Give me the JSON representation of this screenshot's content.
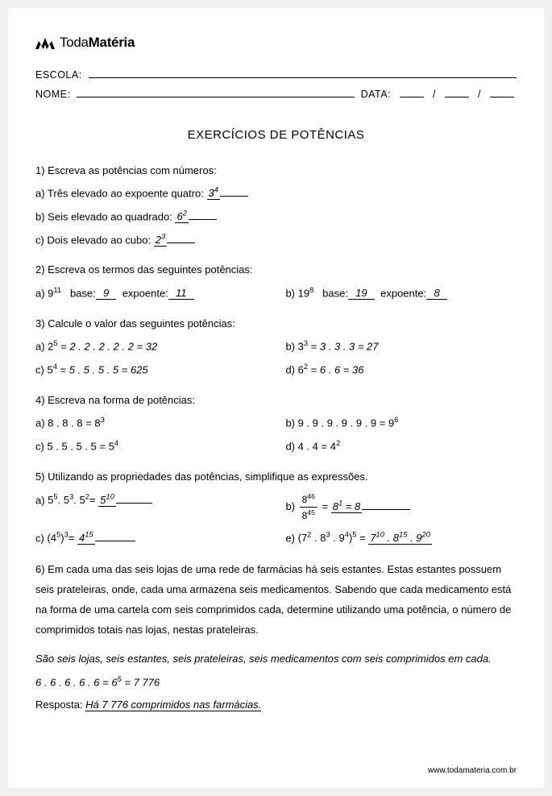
{
  "brand": {
    "part1": "Toda",
    "part2": "Matéria"
  },
  "labels": {
    "school": "ESCOLA:",
    "name": "NOME:",
    "date": "DATA:"
  },
  "title": "EXERCÍCIOS DE POTÊNCIAS",
  "q1": {
    "prompt": "1) Escreva as potências com números:",
    "a": {
      "label": "a) Três elevado ao expoente quatro:",
      "base": "3",
      "exp": "4"
    },
    "b": {
      "label": "b) Seis elevado ao quadrado:",
      "base": "6",
      "exp": "2"
    },
    "c": {
      "label": "c) Dois elevado ao cubo:",
      "base": "2",
      "exp": "3"
    }
  },
  "q2": {
    "prompt": "2) Escreva os termos das seguintes potências:",
    "a": {
      "base": "9",
      "exp": "11",
      "baseLabel": "base:",
      "baseAns": "9",
      "expLabel": "expoente:",
      "expAns": "11"
    },
    "b": {
      "base": "19",
      "exp": "8",
      "baseLabel": "base:",
      "baseAns": "19",
      "expLabel": "expoente:",
      "expAns": "8"
    }
  },
  "q3": {
    "prompt": "3) Calcule o valor das seguintes potências:",
    "a": {
      "pre": "a) ",
      "b": "2",
      "e": "5",
      "ans": "2 . 2 . 2 . 2 . 2 = 32"
    },
    "b": {
      "pre": "b) ",
      "b": "3",
      "e": "3",
      "ans": "3 . 3 . 3 = 27"
    },
    "c": {
      "pre": "c) ",
      "b": "5",
      "e": "4",
      "ans": "5 . 5 . 5 . 5 = 625"
    },
    "d": {
      "pre": "d) ",
      "b": "6",
      "e": "2",
      "ans": "6 . 6 = 36"
    }
  },
  "q4": {
    "prompt": "4) Escreva na forma de potências:",
    "a": {
      "pre": "a) 8 . 8 . 8 = ",
      "b": "8",
      "e": "3"
    },
    "b": {
      "pre": "b) 9 . 9 . 9 . 9 . 9 . 9 = ",
      "b": "9",
      "e": "6"
    },
    "c": {
      "pre": "c) 5 . 5 . 5 . 5 = ",
      "b": "5",
      "e": "4"
    },
    "d": {
      "pre": "d) 4 . 4 = ",
      "b": "4",
      "e": "2"
    }
  },
  "q5": {
    "prompt": " 5) Utilizando as propriedades das potências, simplifique as expressões.",
    "a": {
      "pre": "a) ",
      "expr": "5<sup>5</sup>. 5<sup>3</sup>. 5<sup>2</sup>= ",
      "ans": "5<sup>10</sup>"
    },
    "b": {
      "pre": "b) ",
      "num": "8<sup>46</sup>",
      "den": "8<sup>45</sup>",
      "eq": " = ",
      "ans": "8<sup>1</sup> = 8"
    },
    "c": {
      "pre": "c) ",
      "expr": "(4<sup>5</sup>)<sup>3</sup>= ",
      "ans": "4<sup>15</sup>"
    },
    "e": {
      "pre": "e) ",
      "expr": "(7<sup>2</sup> . 8<sup>3</sup> . 9<sup>4</sup>)<sup>5</sup> = ",
      "ans": "7<sup>10</sup> . 8<sup>15</sup> . 9<sup>20</sup>"
    }
  },
  "q6": {
    "p1": "6) Em cada uma das seis lojas de uma rede de farmácias há seis estantes. Estas estantes possuem seis prateleiras, onde, cada uma armazena seis medicamentos. Sabendo que cada medicamento está na forma de uma cartela com seis comprimidos cada, determine utilizando uma potência, o número de comprimidos totais nas lojas, nestas prateleiras.",
    "explain": "São seis lojas, seis estantes, seis prateleiras, seis medicamentos com seis comprimidos em cada.",
    "calc_pre": "6 . 6 . 6 . 6 . 6 = ",
    "calc_b": "6",
    "calc_e": "5",
    "calc_post": " = 7 776",
    "respLabel": "Resposta:",
    "respAns": "Há 7 776 comprimidos nas farmácias."
  },
  "footer": "www.todamateria.com.br"
}
